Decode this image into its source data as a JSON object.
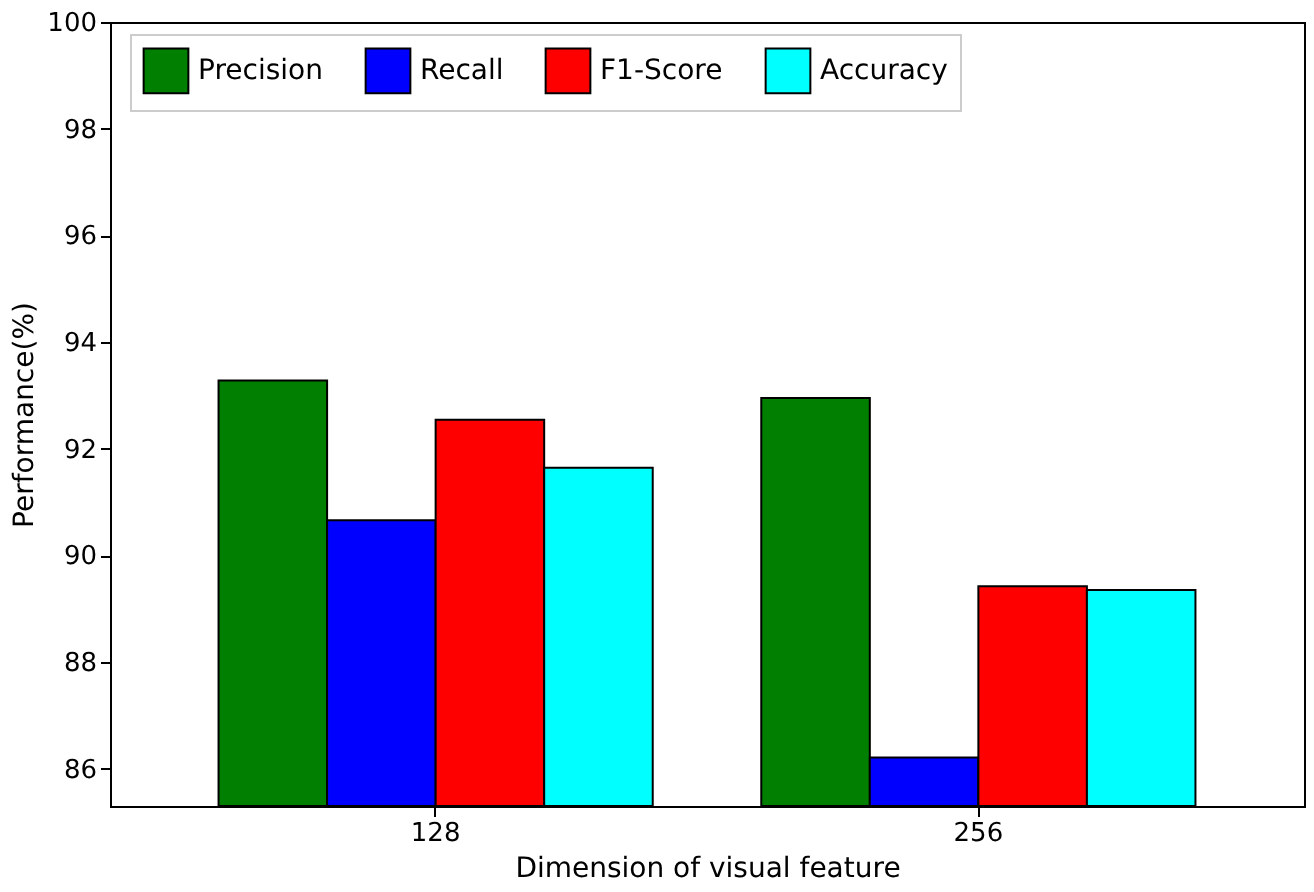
{
  "chart_data": {
    "type": "bar",
    "xlabel": "Dimension of visual feature",
    "ylabel": "Performance(%)",
    "categories": [
      "128",
      "256"
    ],
    "series": [
      {
        "name": "Precision",
        "color": "#007f00",
        "values": [
          93.28,
          92.95
        ]
      },
      {
        "name": "Recall",
        "color": "#0000ff",
        "values": [
          90.66,
          86.21
        ]
      },
      {
        "name": "F1-Score",
        "color": "#ff0000",
        "values": [
          92.54,
          89.42
        ]
      },
      {
        "name": "Accuracy",
        "color": "#00ffff",
        "values": [
          91.64,
          89.35
        ]
      }
    ],
    "ylim": [
      85.3,
      100
    ],
    "yticks": [
      86,
      88,
      90,
      92,
      94,
      96,
      98,
      100
    ],
    "grid": false,
    "legend": "top"
  }
}
